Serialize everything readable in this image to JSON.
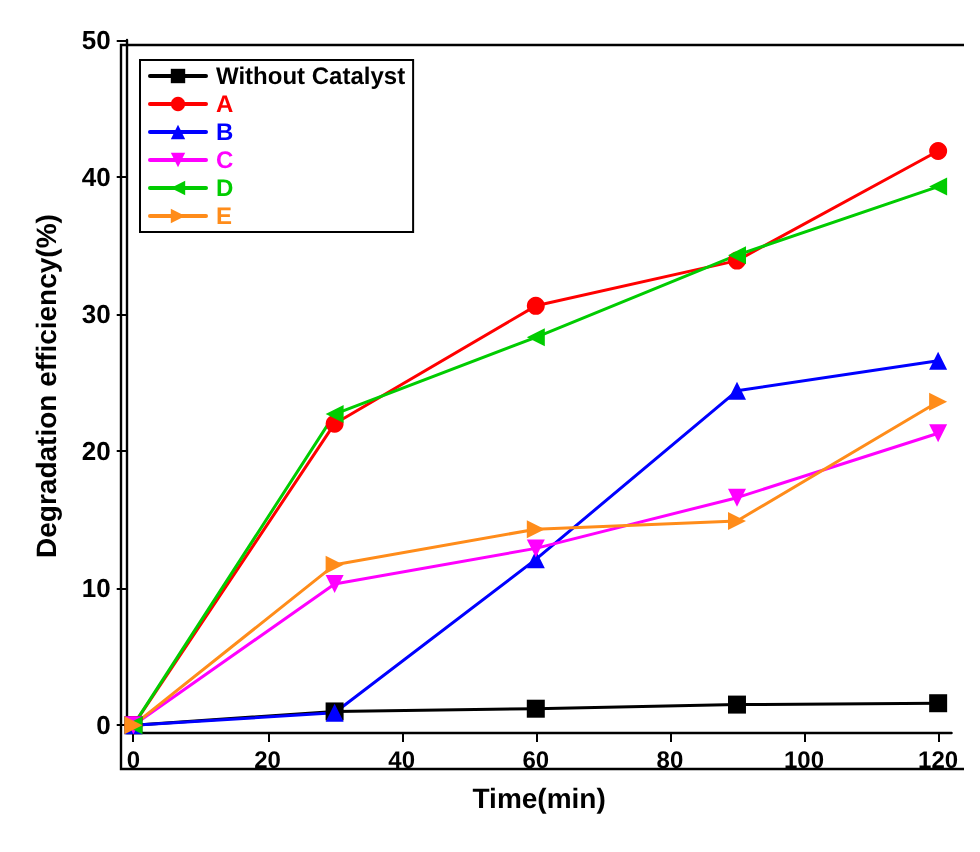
{
  "chart_data": {
    "type": "line",
    "xlabel": "Time(min)",
    "ylabel": "Degradation efficiency(%)",
    "x": [
      0,
      30,
      60,
      90,
      120
    ],
    "series": [
      {
        "name": "Without Catalyst",
        "color": "#000000",
        "marker": "square",
        "values": [
          0,
          1.0,
          1.2,
          1.5,
          1.6
        ]
      },
      {
        "name": "A",
        "color": "#ff0000",
        "marker": "circle",
        "values": [
          0,
          22.0,
          30.6,
          33.9,
          41.9
        ]
      },
      {
        "name": "B",
        "color": "#0000ff",
        "marker": "triangle",
        "values": [
          0,
          0.9,
          12.1,
          24.4,
          26.6
        ]
      },
      {
        "name": "C",
        "color": "#ff00ff",
        "marker": "triangle-down",
        "values": [
          0,
          10.3,
          12.9,
          16.6,
          21.3
        ]
      },
      {
        "name": "D",
        "color": "#00cc00",
        "marker": "triangle-left",
        "values": [
          0,
          22.7,
          28.3,
          34.3,
          39.3
        ]
      },
      {
        "name": "E",
        "color": "#ff8c1a",
        "marker": "triangle-right",
        "values": [
          0,
          11.7,
          14.3,
          14.9,
          23.6
        ]
      }
    ],
    "xlim": [
      -1,
      122
    ],
    "xticks": [
      0,
      20,
      40,
      60,
      80,
      100,
      120
    ],
    "ylim": [
      -0.5,
      50
    ],
    "yticks": [
      0,
      10,
      20,
      30,
      40,
      50
    ],
    "grid": false,
    "legend": "top left",
    "line_style": "solid"
  }
}
